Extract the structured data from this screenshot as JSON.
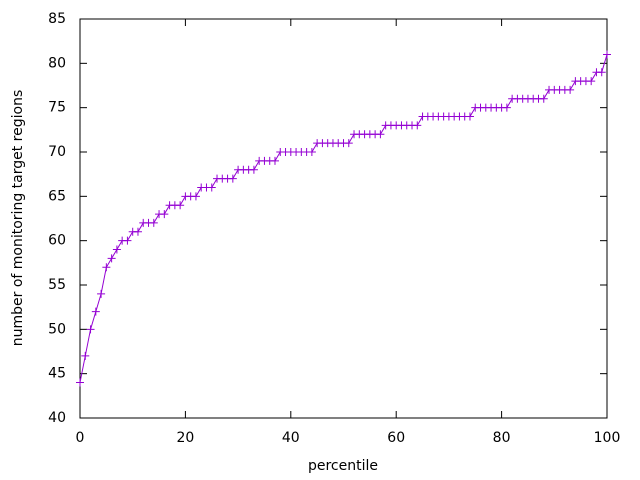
{
  "chart_data": {
    "type": "line",
    "xlabel": "percentile",
    "ylabel": "number of monitoring target regions",
    "x": [
      0,
      1,
      2,
      3,
      4,
      5,
      6,
      7,
      8,
      9,
      10,
      11,
      12,
      13,
      14,
      15,
      16,
      17,
      18,
      19,
      20,
      21,
      22,
      23,
      24,
      25,
      26,
      27,
      28,
      29,
      30,
      31,
      32,
      33,
      34,
      35,
      36,
      37,
      38,
      39,
      40,
      41,
      42,
      43,
      44,
      45,
      46,
      47,
      48,
      49,
      50,
      51,
      52,
      53,
      54,
      55,
      56,
      57,
      58,
      59,
      60,
      61,
      62,
      63,
      64,
      65,
      66,
      67,
      68,
      69,
      70,
      71,
      72,
      73,
      74,
      75,
      76,
      77,
      78,
      79,
      80,
      81,
      82,
      83,
      84,
      85,
      86,
      87,
      88,
      89,
      90,
      91,
      92,
      93,
      94,
      95,
      96,
      97,
      98,
      99,
      100
    ],
    "series": [
      {
        "color": "#9400d3",
        "values": [
          44,
          47,
          50,
          52,
          54,
          57,
          58,
          59,
          60,
          60,
          61,
          61,
          62,
          62,
          62,
          63,
          63,
          64,
          64,
          64,
          65,
          65,
          65,
          66,
          66,
          66,
          67,
          67,
          67,
          67,
          68,
          68,
          68,
          68,
          69,
          69,
          69,
          69,
          70,
          70,
          70,
          70,
          70,
          70,
          70,
          71,
          71,
          71,
          71,
          71,
          71,
          71,
          72,
          72,
          72,
          72,
          72,
          72,
          73,
          73,
          73,
          73,
          73,
          73,
          73,
          74,
          74,
          74,
          74,
          74,
          74,
          74,
          74,
          74,
          74,
          75,
          75,
          75,
          75,
          75,
          75,
          75,
          76,
          76,
          76,
          76,
          76,
          76,
          76,
          77,
          77,
          77,
          77,
          77,
          78,
          78,
          78,
          78,
          79,
          79,
          81
        ]
      }
    ],
    "xlim": [
      0,
      100
    ],
    "xticks": [
      0,
      20,
      40,
      60,
      80,
      100
    ],
    "ylim": [
      40,
      85
    ],
    "yticks": [
      40,
      45,
      50,
      55,
      60,
      65,
      70,
      75,
      80,
      85
    ],
    "grid": false
  }
}
